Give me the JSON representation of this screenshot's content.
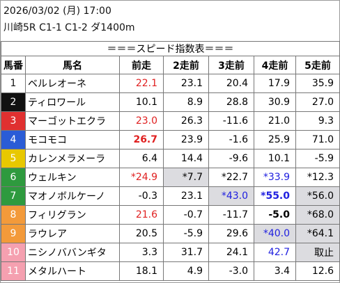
{
  "header": {
    "date": "2026/03/02 (月) 17:00",
    "race": "川崎5R C1-1 C1-2 ダ1400m"
  },
  "table": {
    "title": "＝＝＝スピード指数表＝＝＝",
    "columns": [
      "馬番",
      "馬名",
      "前走",
      "2走前",
      "3走前",
      "4走前",
      "5走前"
    ],
    "rows": [
      [
        "1",
        "ベルレオーネ",
        "22.1",
        "23.1",
        "20.4",
        "17.9",
        "35.9"
      ],
      [
        "2",
        "ティロワール",
        "10.1",
        "8.9",
        "28.8",
        "30.9",
        "27.0"
      ],
      [
        "3",
        "マーゴットエクラ",
        "23.0",
        "26.3",
        "-11.6",
        "21.0",
        "9.3"
      ],
      [
        "4",
        "モコモコ",
        "26.7",
        "23.9",
        "-1.6",
        "25.9",
        "71.0"
      ],
      [
        "5",
        "カレンメラメーラ",
        "6.4",
        "14.4",
        "-9.6",
        "10.1",
        "-5.9"
      ],
      [
        "6",
        "ウェルキン",
        "*24.9",
        "*7.7",
        "*22.7",
        "*33.9",
        "*12.3"
      ],
      [
        "7",
        "マオノボルケーノ",
        "-0.3",
        "23.1",
        "*43.0",
        "*55.0",
        "*56.0"
      ],
      [
        "8",
        "フィリグラン",
        "21.6",
        "-0.7",
        "-11.7",
        "-5.0",
        "*68.0"
      ],
      [
        "9",
        "ラウレア",
        "20.5",
        "-5.9",
        "29.6",
        "*40.0",
        "*64.1"
      ],
      [
        "10",
        "ニシノババンギタ",
        "3.3",
        "31.7",
        "24.1",
        "42.7",
        "取止"
      ],
      [
        "11",
        "メタルハート",
        "18.1",
        "4.9",
        "-3.0",
        "3.4",
        "12.6"
      ]
    ]
  }
}
